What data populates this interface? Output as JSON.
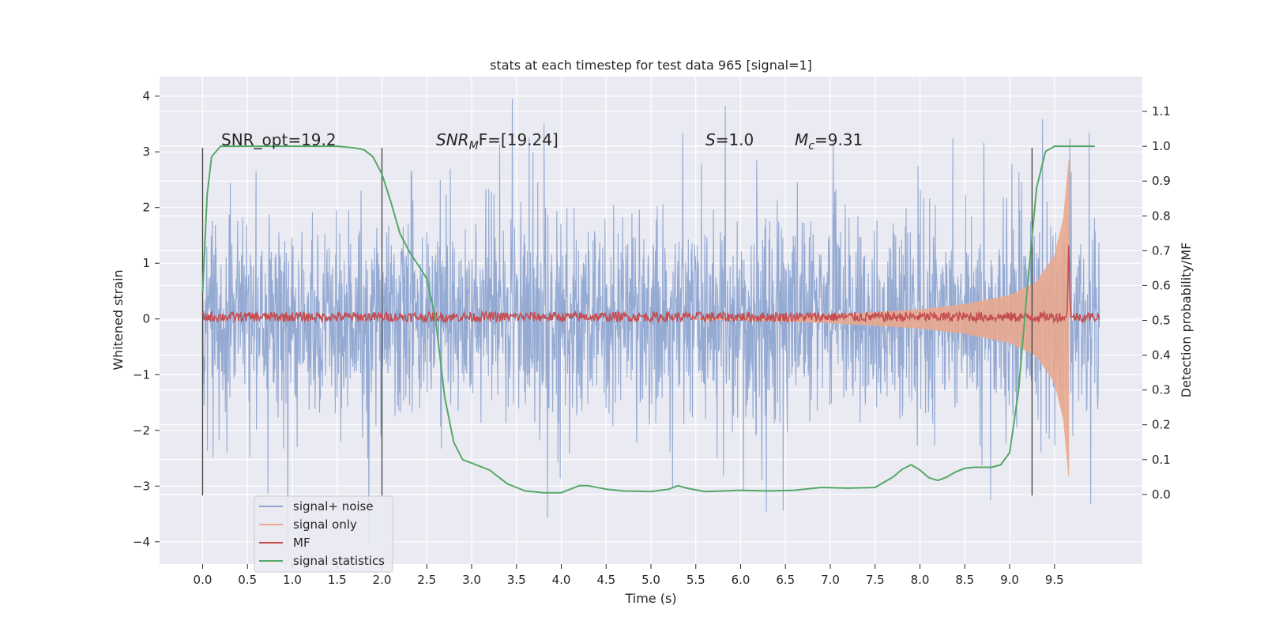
{
  "chart_data": {
    "type": "line",
    "title": "stats at each timestep for test data 965 [signal=1]",
    "xlabel": "Time (s)",
    "ylabel_left": "Whitened strain",
    "ylabel_right": "Detection probability/MF",
    "xlim": [
      -0.48,
      10.48
    ],
    "ylim_left": [
      -4.4,
      4.35
    ],
    "ylim_right": [
      -0.2,
      1.2
    ],
    "x_ticks": [
      "0.0",
      "0.5",
      "1.0",
      "1.5",
      "2.0",
      "2.5",
      "3.0",
      "3.5",
      "4.0",
      "4.5",
      "5.0",
      "5.5",
      "6.0",
      "6.5",
      "7.0",
      "7.5",
      "8.0",
      "8.5",
      "9.0",
      "9.5"
    ],
    "y_left_ticks": [
      "4",
      "3",
      "2",
      "1",
      "0",
      "−1",
      "−2",
      "−3",
      "−4"
    ],
    "y_right_ticks": [
      "1.1",
      "1.0",
      "0.9",
      "0.8",
      "0.7",
      "0.6",
      "0.5",
      "0.4",
      "0.3",
      "0.2",
      "0.1",
      "0.0"
    ],
    "grid": true,
    "legend_position": "lower-left",
    "annotations": {
      "snr_opt": "SNR_opt=19.2",
      "snr_mf_main": "SNR",
      "snr_mf_sub": "M",
      "snr_mf_rest": "F=[19.24]",
      "s_main": "S",
      "s_rest": "=1.0",
      "mc_main": "M",
      "mc_sub": "c",
      "mc_rest": "=9.31"
    },
    "vertical_markers_s": [
      0.0,
      2.0,
      9.25
    ],
    "series": [
      {
        "name": "signal+ noise",
        "axis": "left",
        "color": "#8fa6d1",
        "description_points": {
          "t_start": 0.0,
          "t_end": 10.0,
          "typical_range": [
            -2.0,
            2.6
          ],
          "extremes": [
            -4.05,
            3.95
          ]
        }
      },
      {
        "name": "signal only",
        "axis": "left",
        "color": "#e8a88f",
        "envelope": {
          "t": [
            6.0,
            7.0,
            8.0,
            8.5,
            9.0,
            9.3,
            9.5,
            9.6,
            9.66
          ],
          "amp": [
            0.02,
            0.08,
            0.18,
            0.28,
            0.45,
            0.7,
            1.2,
            1.9,
            3.0
          ]
        }
      },
      {
        "name": "MF",
        "axis": "right",
        "color": "#c44e52",
        "baseline": 0.51,
        "peak": {
          "t": 9.66,
          "value": 0.72
        }
      },
      {
        "name": "signal statistics",
        "axis": "right",
        "color": "#55a868",
        "x": [
          0.0,
          0.05,
          0.1,
          0.2,
          0.3,
          0.5,
          1.0,
          1.5,
          1.7,
          1.8,
          1.9,
          2.0,
          2.1,
          2.2,
          2.3,
          2.4,
          2.5,
          2.6,
          2.7,
          2.8,
          2.9,
          3.0,
          3.2,
          3.4,
          3.6,
          3.8,
          4.0,
          4.2,
          4.3,
          4.5,
          4.7,
          5.0,
          5.2,
          5.3,
          5.4,
          5.6,
          5.8,
          6.0,
          6.3,
          6.6,
          6.9,
          7.2,
          7.5,
          7.7,
          7.8,
          7.9,
          8.0,
          8.1,
          8.2,
          8.3,
          8.4,
          8.5,
          8.6,
          8.8,
          8.9,
          9.0,
          9.1,
          9.2,
          9.3,
          9.4,
          9.5,
          9.6,
          9.7,
          9.8,
          9.9,
          9.95
        ],
        "y": [
          0.58,
          0.86,
          0.97,
          1.0,
          1.0,
          1.0,
          1.0,
          1.0,
          0.995,
          0.99,
          0.97,
          0.92,
          0.84,
          0.75,
          0.7,
          0.66,
          0.62,
          0.5,
          0.28,
          0.15,
          0.1,
          0.09,
          0.07,
          0.03,
          0.01,
          0.005,
          0.005,
          0.025,
          0.025,
          0.015,
          0.01,
          0.008,
          0.015,
          0.025,
          0.018,
          0.008,
          0.01,
          0.012,
          0.01,
          0.012,
          0.02,
          0.018,
          0.02,
          0.05,
          0.072,
          0.085,
          0.07,
          0.048,
          0.04,
          0.05,
          0.065,
          0.075,
          0.078,
          0.078,
          0.085,
          0.12,
          0.3,
          0.6,
          0.88,
          0.985,
          1.0,
          1.0,
          1.0,
          1.0,
          1.0,
          1.0
        ]
      }
    ]
  }
}
